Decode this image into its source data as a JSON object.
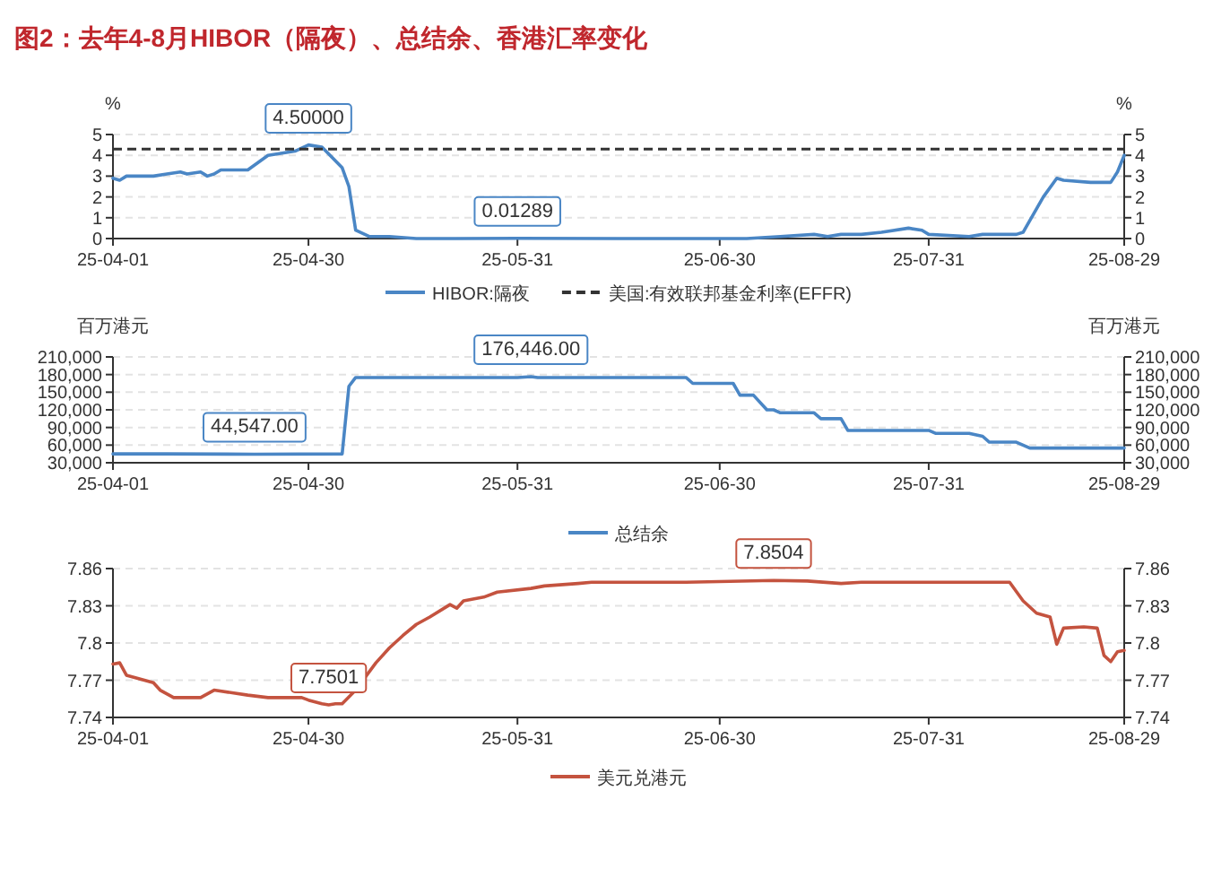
{
  "chart_data": [
    {
      "type": "line",
      "title": "图2：去年4-8月HIBOR（隔夜）、总结余、香港汇率变化",
      "ylabel": "%",
      "y2label": "%",
      "xlim": [
        "--04-01",
        "--08-29"
      ],
      "xticks": [
        {
          "value": "--04-01",
          "label": "25-04-01"
        },
        {
          "value": "--04-30",
          "label": "25-04-30"
        },
        {
          "value": "--05-31",
          "label": "25-05-31"
        },
        {
          "value": "--06-30",
          "label": "25-06-30"
        },
        {
          "value": "--07-31",
          "label": "25-07-31"
        },
        {
          "value": "--08-29",
          "label": "25-08-29"
        }
      ],
      "ylim": [
        0,
        5
      ],
      "yticks": [
        0,
        1,
        2,
        3,
        4,
        5
      ],
      "y2lim": [
        0,
        5
      ],
      "y2ticks": [
        0,
        1,
        2,
        3,
        4,
        5
      ],
      "grid": "y",
      "legend": "bottom",
      "series": [
        {
          "name": "HIBOR:隔夜",
          "color": "#4a86c5",
          "x": [
            "--04-01",
            "--04-02",
            "--04-03",
            "--04-07",
            "--04-09",
            "--04-11",
            "--04-12",
            "--04-14",
            "--04-15",
            "--04-16",
            "--04-17",
            "--04-21",
            "--04-24",
            "--04-28",
            "--04-30",
            "--05-02",
            "--05-05",
            "--05-06",
            "--05-07",
            "--05-09",
            "--05-12",
            "--05-16",
            "--05-21",
            "--05-31",
            "--06-15",
            "--06-30",
            "--07-04",
            "--07-09",
            "--07-14",
            "--07-16",
            "--07-18",
            "--07-21",
            "--07-24",
            "--07-28",
            "--07-30",
            "--07-31",
            "--08-06",
            "--08-08",
            "--08-13",
            "--08-14",
            "--08-17",
            "--08-19",
            "--08-20",
            "--08-24",
            "--08-27",
            "--08-28",
            "--08-29"
          ],
          "values": [
            2.9,
            2.8,
            3.0,
            3.0,
            3.1,
            3.2,
            3.1,
            3.2,
            3.0,
            3.1,
            3.3,
            3.3,
            4.0,
            4.2,
            4.5,
            4.4,
            3.4,
            2.5,
            0.4,
            0.1,
            0.1,
            0.0,
            0.0,
            0.01289,
            0.0,
            0.0,
            0.0,
            0.1,
            0.2,
            0.1,
            0.2,
            0.2,
            0.3,
            0.5,
            0.4,
            0.2,
            0.1,
            0.2,
            0.2,
            0.3,
            2.0,
            2.9,
            2.8,
            2.7,
            2.7,
            3.2,
            4.0
          ]
        }
      ],
      "ref_lines": [
        {
          "axis": "y",
          "value": 4.3,
          "label": "美国:有效联邦基金利率(EFFR)",
          "color": "#333333",
          "line_style": "dashed"
        }
      ],
      "annotations": [
        {
          "text": "4.50000",
          "x": "--04-30",
          "y": 4.5
        },
        {
          "text": "0.01289",
          "x": "--05-31",
          "y": 0.01289
        }
      ]
    },
    {
      "type": "line",
      "ylabel": "百万港元",
      "y2label": "百万港元",
      "xlim": [
        "--04-01",
        "--08-29"
      ],
      "xticks": [
        {
          "value": "--04-01",
          "label": "25-04-01"
        },
        {
          "value": "--04-30",
          "label": "25-04-30"
        },
        {
          "value": "--05-31",
          "label": "25-05-31"
        },
        {
          "value": "--06-30",
          "label": "25-06-30"
        },
        {
          "value": "--07-31",
          "label": "25-07-31"
        },
        {
          "value": "--08-29",
          "label": "25-08-29"
        }
      ],
      "ylim": [
        30000,
        210000
      ],
      "yticks": [
        {
          "value": 30000,
          "label": "30,000"
        },
        {
          "value": 60000,
          "label": "60,000"
        },
        {
          "value": 90000,
          "label": "90,000"
        },
        {
          "value": 120000,
          "label": "120,000"
        },
        {
          "value": 150000,
          "label": "150,000"
        },
        {
          "value": 180000,
          "label": "180,000"
        },
        {
          "value": 210000,
          "label": "210,000"
        }
      ],
      "y2lim": [
        30000,
        210000
      ],
      "y2ticks": [
        {
          "value": 30000,
          "label": "30,000"
        },
        {
          "value": 60000,
          "label": "60,000"
        },
        {
          "value": 90000,
          "label": "90,000"
        },
        {
          "value": 120000,
          "label": "120,000"
        },
        {
          "value": 150000,
          "label": "150,000"
        },
        {
          "value": 180000,
          "label": "180,000"
        },
        {
          "value": 210000,
          "label": "210,000"
        }
      ],
      "grid": "y",
      "legend": "bottom",
      "series": [
        {
          "name": "总结余",
          "color": "#4a86c5",
          "x": [
            "--04-01",
            "--04-09",
            "--04-22",
            "--05-05",
            "--05-06",
            "--05-07",
            "--05-31",
            "--06-02",
            "--06-03",
            "--06-25",
            "--06-26",
            "--07-02",
            "--07-03",
            "--07-05",
            "--07-07",
            "--07-08",
            "--07-09",
            "--07-14",
            "--07-15",
            "--07-18",
            "--07-19",
            "--07-31",
            "--08-01",
            "--08-06",
            "--08-08",
            "--08-09",
            "--08-13",
            "--08-15",
            "--08-29"
          ],
          "values": [
            45000,
            45000,
            44547,
            45000,
            160000,
            175000,
            175000,
            176446,
            175000,
            175000,
            165000,
            165000,
            145000,
            145000,
            120000,
            120000,
            115000,
            115000,
            105000,
            105000,
            85000,
            85000,
            80000,
            80000,
            75000,
            65000,
            65000,
            55000,
            55000
          ]
        }
      ],
      "annotations": [
        {
          "text": "44,547.00",
          "x": "--04-22",
          "y": 44547
        },
        {
          "text": "176,446.00",
          "x": "--06-02",
          "y": 176446
        }
      ]
    },
    {
      "type": "line",
      "xlim": [
        "--04-01",
        "--08-29"
      ],
      "xticks": [
        {
          "value": "--04-01",
          "label": "25-04-01"
        },
        {
          "value": "--04-30",
          "label": "25-04-30"
        },
        {
          "value": "--05-31",
          "label": "25-05-31"
        },
        {
          "value": "--06-30",
          "label": "25-06-30"
        },
        {
          "value": "--07-31",
          "label": "25-07-31"
        },
        {
          "value": "--08-29",
          "label": "25-08-29"
        }
      ],
      "ylim": [
        7.74,
        7.86
      ],
      "yticks": [
        7.74,
        7.77,
        7.8,
        7.83,
        7.86
      ],
      "y2lim": [
        7.74,
        7.86
      ],
      "y2ticks": [
        7.74,
        7.77,
        7.8,
        7.83,
        7.86
      ],
      "grid": "y",
      "legend": "bottom",
      "series": [
        {
          "name": "美元兑港元",
          "color": "#c4533f",
          "x": [
            "--04-01",
            "--04-02",
            "--04-03",
            "--04-07",
            "--04-08",
            "--04-10",
            "--04-14",
            "--04-16",
            "--04-21",
            "--04-24",
            "--04-29",
            "--04-30",
            "--05-02",
            "--05-03",
            "--05-04",
            "--05-05",
            "--05-07",
            "--05-10",
            "--05-12",
            "--05-14",
            "--05-16",
            "--05-18",
            "--05-21",
            "--05-22",
            "--05-23",
            "--05-26",
            "--05-28",
            "--06-02",
            "--06-04",
            "--06-09",
            "--06-11",
            "--06-25",
            "--07-08",
            "--07-13",
            "--07-18",
            "--07-21",
            "--08-12",
            "--08-14",
            "--08-16",
            "--08-18",
            "--08-19",
            "--08-20",
            "--08-23",
            "--08-25",
            "--08-26",
            "--08-27",
            "--08-28",
            "--08-29"
          ],
          "values": [
            7.783,
            7.784,
            7.774,
            7.768,
            7.762,
            7.756,
            7.756,
            7.762,
            7.758,
            7.756,
            7.756,
            7.754,
            7.751,
            7.7501,
            7.751,
            7.751,
            7.762,
            7.784,
            7.796,
            7.806,
            7.815,
            7.821,
            7.831,
            7.828,
            7.834,
            7.837,
            7.841,
            7.844,
            7.846,
            7.848,
            7.849,
            7.849,
            7.8504,
            7.85,
            7.848,
            7.849,
            7.849,
            7.834,
            7.824,
            7.821,
            7.799,
            7.812,
            7.813,
            7.812,
            7.79,
            7.785,
            7.793,
            7.794
          ]
        }
      ],
      "annotations": [
        {
          "text": "7.7501",
          "x": "--05-03",
          "y": 7.7501
        },
        {
          "text": "7.8504",
          "x": "--07-08",
          "y": 7.8504
        }
      ]
    }
  ]
}
